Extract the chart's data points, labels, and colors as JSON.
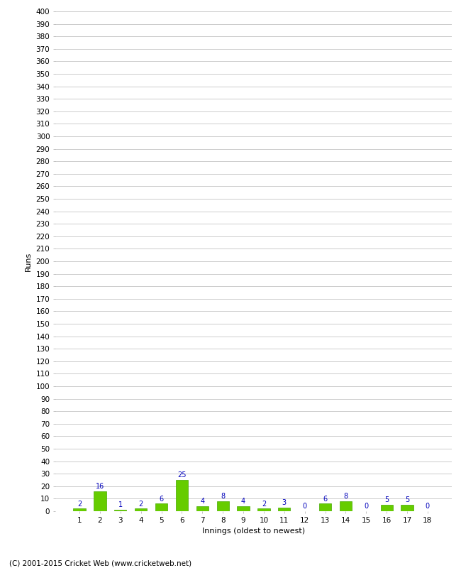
{
  "xlabel": "Innings (oldest to newest)",
  "ylabel": "Runs",
  "categories": [
    1,
    2,
    3,
    4,
    5,
    6,
    7,
    8,
    9,
    10,
    11,
    12,
    13,
    14,
    15,
    16,
    17,
    18
  ],
  "values": [
    2,
    16,
    1,
    2,
    6,
    25,
    4,
    8,
    4,
    2,
    3,
    0,
    6,
    8,
    0,
    5,
    5,
    0
  ],
  "bar_color": "#66cc00",
  "bar_edge_color": "#44aa00",
  "ylim": [
    0,
    400
  ],
  "ytick_step": 10,
  "annotation_color": "#0000bb",
  "annotation_fontsize": 7,
  "background_color": "#ffffff",
  "grid_color": "#cccccc",
  "footer": "(C) 2001-2015 Cricket Web (www.cricketweb.net)",
  "footer_fontsize": 7.5,
  "xlabel_fontsize": 8,
  "ylabel_fontsize": 8,
  "tick_fontsize": 7.5
}
